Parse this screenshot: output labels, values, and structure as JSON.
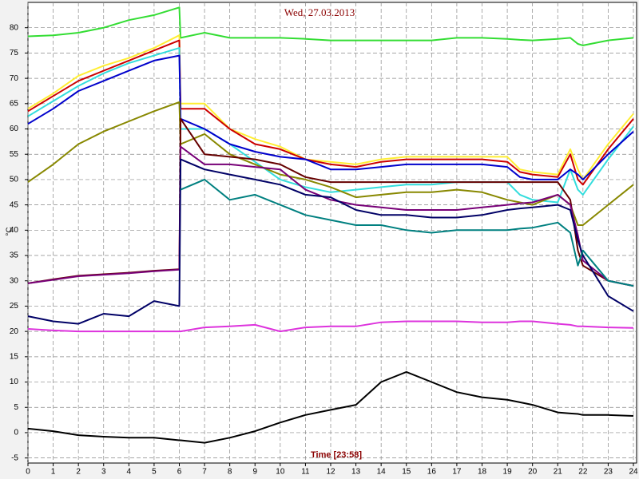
{
  "chart_data": {
    "type": "line",
    "title": "Wed, 27.03.2013",
    "y_label": "°C",
    "x_label": "Time [23:58]",
    "x": [
      0,
      1,
      2,
      3,
      4,
      5,
      6,
      6.05,
      7,
      8,
      9,
      10,
      11,
      12,
      13,
      14,
      15,
      16,
      17,
      18,
      19,
      19.5,
      20,
      21,
      21.5,
      21.8,
      22,
      23,
      24
    ],
    "xlim": [
      0,
      24
    ],
    "xticks": [
      0,
      1,
      2,
      3,
      4,
      5,
      6,
      7,
      8,
      9,
      10,
      11,
      12,
      13,
      14,
      15,
      16,
      17,
      18,
      19,
      20,
      21,
      22,
      23,
      24
    ],
    "ylim": [
      -6,
      85
    ],
    "yticks": [
      -5,
      0,
      5,
      10,
      15,
      20,
      25,
      30,
      35,
      40,
      45,
      50,
      55,
      60,
      65,
      70,
      75,
      80
    ],
    "grid": true,
    "series": [
      {
        "color": "#33dd33",
        "values": [
          78.3,
          78.5,
          79,
          80,
          81.5,
          82.5,
          84,
          78,
          79,
          78,
          78,
          78,
          77.8,
          77.5,
          77.5,
          77.5,
          77.5,
          77.5,
          78,
          78,
          77.8,
          77.6,
          77.5,
          77.8,
          78,
          76.8,
          76.5,
          77.5,
          78
        ]
      },
      {
        "color": "#ffee33",
        "values": [
          64,
          67,
          70.5,
          72.5,
          74,
          76,
          78.5,
          65,
          65,
          60,
          58,
          56.5,
          54,
          53.5,
          53,
          54,
          54.5,
          54.5,
          54.5,
          54.5,
          54.5,
          52,
          51.5,
          51,
          56,
          52,
          50,
          57,
          63
        ]
      },
      {
        "color": "#cc0000",
        "values": [
          63.5,
          66.5,
          69.5,
          71.5,
          73.5,
          75.5,
          77.5,
          64,
          64,
          60,
          57,
          56,
          54,
          53,
          52.5,
          53.5,
          54,
          54,
          54,
          54,
          53.5,
          51.5,
          51,
          50.5,
          55,
          50,
          49,
          56,
          62
        ]
      },
      {
        "color": "#33dddd",
        "values": [
          62.5,
          65.5,
          68.5,
          71,
          73,
          74.5,
          76,
          60,
          60,
          57,
          53.5,
          50,
          48.5,
          47.5,
          48,
          48.5,
          49,
          49,
          49.5,
          49.5,
          49.5,
          47,
          46,
          45.5,
          52,
          48,
          47,
          54,
          60.5
        ]
      },
      {
        "color": "#0000cc",
        "values": [
          61,
          64,
          67.5,
          69.5,
          71.5,
          73.5,
          74.5,
          62,
          60,
          57,
          55.5,
          54.5,
          54,
          52,
          52,
          52.5,
          53,
          53,
          53,
          53,
          52.5,
          50.5,
          50,
          50,
          52,
          51,
          50,
          55,
          59.5
        ]
      },
      {
        "color": "#888800",
        "values": [
          49.5,
          53,
          57,
          59.5,
          61.5,
          63.5,
          65.3,
          57,
          59,
          55,
          53,
          51,
          50,
          48.5,
          46.5,
          47,
          47.5,
          47.5,
          48,
          47.5,
          46,
          45.5,
          45,
          47,
          45,
          41,
          41,
          45,
          49
        ]
      },
      {
        "color": "#660000",
        "values": [
          29.5,
          30.3,
          31,
          31.3,
          31.6,
          32,
          32.3,
          62,
          55,
          54.5,
          54,
          53,
          50.5,
          49.5,
          49.5,
          49.5,
          49.5,
          49.5,
          49.5,
          49.5,
          49.5,
          49.5,
          49.5,
          49.5,
          46,
          36,
          33,
          30,
          29
        ]
      },
      {
        "color": "#770077",
        "values": [
          29.5,
          30.2,
          30.9,
          31.2,
          31.5,
          31.9,
          32.2,
          56.5,
          53,
          53,
          52.5,
          52,
          48,
          46,
          45,
          44.5,
          44,
          44,
          44,
          44.5,
          45,
          45.3,
          45.5,
          47,
          45,
          39,
          34,
          30,
          29
        ]
      },
      {
        "color": "#000066",
        "values": [
          23,
          22,
          21.5,
          23.5,
          23,
          26,
          25,
          54,
          52,
          51,
          50,
          49,
          47,
          46.5,
          44,
          43,
          43,
          42.5,
          42.5,
          43,
          44,
          44.3,
          44.5,
          45,
          44,
          38,
          35,
          27,
          24
        ]
      },
      {
        "color": "#008080",
        "values": [
          null,
          null,
          null,
          null,
          null,
          null,
          null,
          48,
          50,
          46,
          47,
          45,
          43,
          42,
          41,
          41,
          40,
          39.5,
          40,
          40,
          40,
          40.3,
          40.5,
          41.5,
          39.5,
          33,
          36,
          30,
          29
        ]
      },
      {
        "color": "#dd33dd",
        "values": [
          20.5,
          20.2,
          20,
          20,
          20,
          20,
          20,
          20,
          20.8,
          21,
          21.3,
          20,
          20.8,
          21,
          21,
          21.8,
          22,
          22,
          22,
          21.8,
          21.8,
          22,
          22,
          21.5,
          21.3,
          21,
          21,
          20.8,
          20.7
        ]
      },
      {
        "color": "#000000",
        "values": [
          0.8,
          0.3,
          -0.5,
          -0.8,
          -1,
          -1,
          -1.5,
          -1.5,
          -2,
          -1,
          0.3,
          2,
          3.5,
          4.5,
          5.5,
          10,
          12,
          10,
          8,
          7,
          6.5,
          6,
          5.5,
          4,
          3.8,
          3.7,
          3.5,
          3.5,
          3.3
        ]
      }
    ]
  }
}
